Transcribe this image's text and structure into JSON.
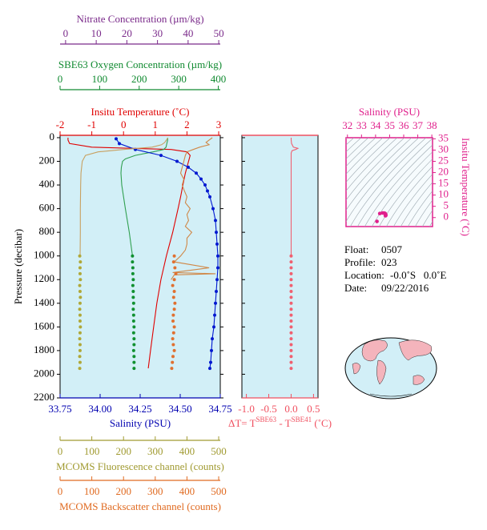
{
  "chart_data": [
    {
      "type": "profile",
      "ylabel": "Pressure (decibar)",
      "ylim": [
        -20,
        2200
      ],
      "y_inverted": true,
      "yticks": [
        0,
        200,
        400,
        600,
        800,
        1000,
        1200,
        1400,
        1600,
        1800,
        2000,
        2200
      ],
      "background": "#d2eff7",
      "top_axes": [
        {
          "title": "Insitu Temperature (˚C)",
          "color": "#e00000",
          "xlim": [
            -2,
            3.05
          ],
          "xticks": [
            -2,
            -1,
            0,
            1,
            2,
            3
          ],
          "series": [
            {
              "style": "line",
              "color": "#e00000",
              "pressure": [
                0,
                20,
                50,
                80,
                100,
                120,
                150,
                200,
                300,
                400,
                500,
                600,
                800,
                1000,
                1200,
                1400,
                1600,
                1800,
                1950
              ],
              "values": [
                -1.75,
                -1.75,
                -1.7,
                -1.0,
                1.5,
                2.0,
                2.1,
                2.05,
                1.95,
                1.87,
                1.8,
                1.72,
                1.55,
                1.35,
                1.18,
                1.05,
                0.95,
                0.85,
                0.78
              ]
            }
          ]
        },
        {
          "title": "SBE63 Oxygen Concentration (µm/kg)",
          "color": "#108a30",
          "xlim": [
            0,
            405
          ],
          "xticks": [
            0,
            100,
            200,
            300,
            400
          ],
          "series": [
            {
              "style": "line",
              "color": "#30a050",
              "pressure": [
                0,
                20,
                50,
                80,
                100,
                120,
                150,
                180,
                200,
                250,
                300,
                400,
                600,
                800,
                1000
              ],
              "values": [
                272,
                272,
                270,
                268,
                262,
                235,
                190,
                165,
                158,
                155,
                154,
                156,
                165,
                175,
                183
              ]
            },
            {
              "style": "dots",
              "color": "#109030",
              "pressure": [
                1000,
                1050,
                1100,
                1150,
                1200,
                1250,
                1300,
                1350,
                1400,
                1450,
                1500,
                1550,
                1600,
                1650,
                1700,
                1750,
                1800,
                1850,
                1900,
                1950
              ],
              "values": [
                183,
                183,
                184,
                184,
                185,
                184,
                185,
                185,
                186,
                185,
                186,
                186,
                187,
                186,
                187,
                187,
                186,
                187,
                187,
                187
              ]
            }
          ]
        },
        {
          "title": "Nitrate Concentration (µm/kg)",
          "color": "#7a2a8a",
          "xlim": [
            -1.8,
            50.5
          ],
          "xticks": [
            0,
            10,
            20,
            30,
            40,
            50
          ],
          "series": []
        }
      ],
      "bottom_axes": [
        {
          "title": "Salinity (PSU)",
          "color": "#0000b0",
          "xlim": [
            33.75,
            34.75
          ],
          "xticks": [
            33.75,
            {
              "value": 34,
              "label": "34.00"
            },
            34.25,
            {
              "value": 34.5,
              "label": "34.50"
            },
            34.75
          ],
          "series": [
            {
              "style": "line+dots",
              "color": "#0018d0",
              "pressure": [
                10,
                50,
                100,
                150,
                200,
                250,
                300,
                350,
                400,
                450,
                500,
                600,
                700,
                800,
                900,
                1000,
                1100,
                1200,
                1300,
                1400,
                1500,
                1600,
                1700,
                1800,
                1900,
                1950
              ],
              "values": [
                34.1,
                34.12,
                34.22,
                34.38,
                34.48,
                34.55,
                34.6,
                34.63,
                34.655,
                34.67,
                34.685,
                34.705,
                34.72,
                34.725,
                34.73,
                34.735,
                34.735,
                34.73,
                34.725,
                34.72,
                34.715,
                34.71,
                34.7,
                34.695,
                34.69,
                34.685
              ]
            }
          ]
        },
        {
          "title": "MCOMS Fluorescence channel (counts)",
          "color": "#a09a30",
          "xlim": [
            0,
            505
          ],
          "xticks": [
            0,
            100,
            200,
            300,
            400,
            500
          ],
          "series": [
            {
              "style": "line",
              "color": "#c8a060",
              "pressure": [
                0,
                20,
                40,
                60,
                80,
                100,
                120,
                150,
                200,
                300,
                400,
                600,
                800,
                1000
              ],
              "values": [
                340,
                335,
                330,
                320,
                290,
                200,
                120,
                80,
                70,
                66,
                65,
                64,
                64,
                63
              ]
            },
            {
              "style": "dots",
              "color": "#b0a838",
              "pressure": [
                1000,
                1050,
                1100,
                1150,
                1200,
                1250,
                1300,
                1350,
                1400,
                1450,
                1500,
                1550,
                1600,
                1650,
                1700,
                1750,
                1800,
                1850,
                1900,
                1950
              ],
              "values": [
                62,
                64,
                63,
                63,
                64,
                62,
                63,
                64,
                63,
                62,
                63,
                63,
                64,
                63,
                62,
                63,
                63,
                62,
                63,
                62
              ]
            }
          ]
        },
        {
          "title": "MCOMS Backscatter channel (counts)",
          "color": "#e06a20",
          "xlim": [
            0,
            505
          ],
          "xticks": [
            0,
            100,
            200,
            300,
            400,
            500
          ],
          "series": [
            {
              "style": "line",
              "color": "#d08848",
              "pressure": [
                0,
                20,
                40,
                60,
                80,
                100,
                120,
                150,
                200,
                250,
                300,
                350,
                400,
                450,
                500,
                550,
                600,
                650,
                700,
                750,
                800,
                850,
                900,
                950,
                1000,
                1050,
                1100,
                1140,
                1150,
                1160,
                1200
              ],
              "values": [
                480,
                470,
                460,
                470,
                440,
                420,
                400,
                395,
                390,
                385,
                380,
                390,
                385,
                392,
                400,
                395,
                410,
                400,
                405,
                395,
                415,
                400,
                400,
                395,
                380,
                360,
                470,
                355,
                490,
                360,
                350
              ]
            },
            {
              "style": "dots",
              "color": "#e07030",
              "pressure": [
                1000,
                1050,
                1100,
                1150,
                1200,
                1250,
                1300,
                1350,
                1400,
                1450,
                1500,
                1550,
                1600,
                1650,
                1700,
                1750,
                1800,
                1850,
                1900,
                1950
              ],
              "values": [
                360,
                358,
                362,
                365,
                360,
                355,
                360,
                358,
                362,
                360,
                357,
                356,
                360,
                358,
                355,
                357,
                360,
                356,
                354,
                352
              ]
            }
          ]
        }
      ]
    },
    {
      "type": "profile",
      "title_parts": [
        "ΔT= T",
        "SBE63",
        " - T",
        "SBE41",
        " (˚C)"
      ],
      "color": "#f05060",
      "ylim": [
        -20,
        2200
      ],
      "y_inverted": true,
      "background": "#d2eff7",
      "xlim": [
        -1.1,
        0.6
      ],
      "xticks": [
        {
          "value": -1,
          "label": "-1.0"
        },
        {
          "value": -0.5,
          "label": "-0.5"
        },
        {
          "value": 0,
          "label": "0.0"
        },
        {
          "value": 0.5,
          "label": "0.5"
        }
      ],
      "series": [
        {
          "style": "line",
          "color": "#f06070",
          "pressure": [
            0,
            20,
            50,
            80,
            90,
            100,
            110,
            130,
            200,
            400,
            600,
            800,
            1000
          ],
          "values": [
            0,
            0,
            0.01,
            0.05,
            0.15,
            0.1,
            0.02,
            0,
            0,
            0,
            0,
            0,
            0
          ]
        },
        {
          "style": "dots",
          "color": "#f06070",
          "pressure": [
            1000,
            1050,
            1100,
            1150,
            1200,
            1250,
            1300,
            1350,
            1400,
            1450,
            1500,
            1550,
            1600,
            1650,
            1700,
            1750,
            1800,
            1850,
            1900,
            1950
          ],
          "values": [
            0,
            0,
            0,
            0,
            0,
            0,
            0,
            0,
            0,
            0,
            0,
            0,
            0,
            0,
            0,
            0,
            0,
            0,
            0,
            0
          ]
        }
      ]
    },
    {
      "type": "scatter",
      "xlabel": "Salinity (PSU)",
      "ylabel": "Insitu Temperature (˚C)",
      "color": "#e0208c",
      "xlim": [
        31.9,
        38.05
      ],
      "xticks": [
        32,
        33,
        34,
        35,
        36,
        37,
        38
      ],
      "ylim": [
        -4,
        35.5
      ],
      "yticks": [
        0,
        5,
        10,
        15,
        20,
        25,
        30,
        35
      ],
      "x": [
        34.1,
        34.3,
        34.5,
        34.6,
        34.65,
        34.68,
        34.7,
        34.72,
        34.73,
        34.72,
        34.7
      ],
      "values": [
        -1.7,
        1.8,
        2.05,
        2.0,
        1.9,
        1.8,
        1.6,
        1.4,
        1.1,
        0.9,
        0.8
      ]
    }
  ],
  "info": {
    "rows": [
      [
        "Float:",
        "0507"
      ],
      [
        "Profile:",
        "023"
      ],
      [
        "Location:",
        "-0.0˚S   0.0˚E"
      ],
      [
        "Date:",
        "09/22/2016"
      ]
    ]
  }
}
